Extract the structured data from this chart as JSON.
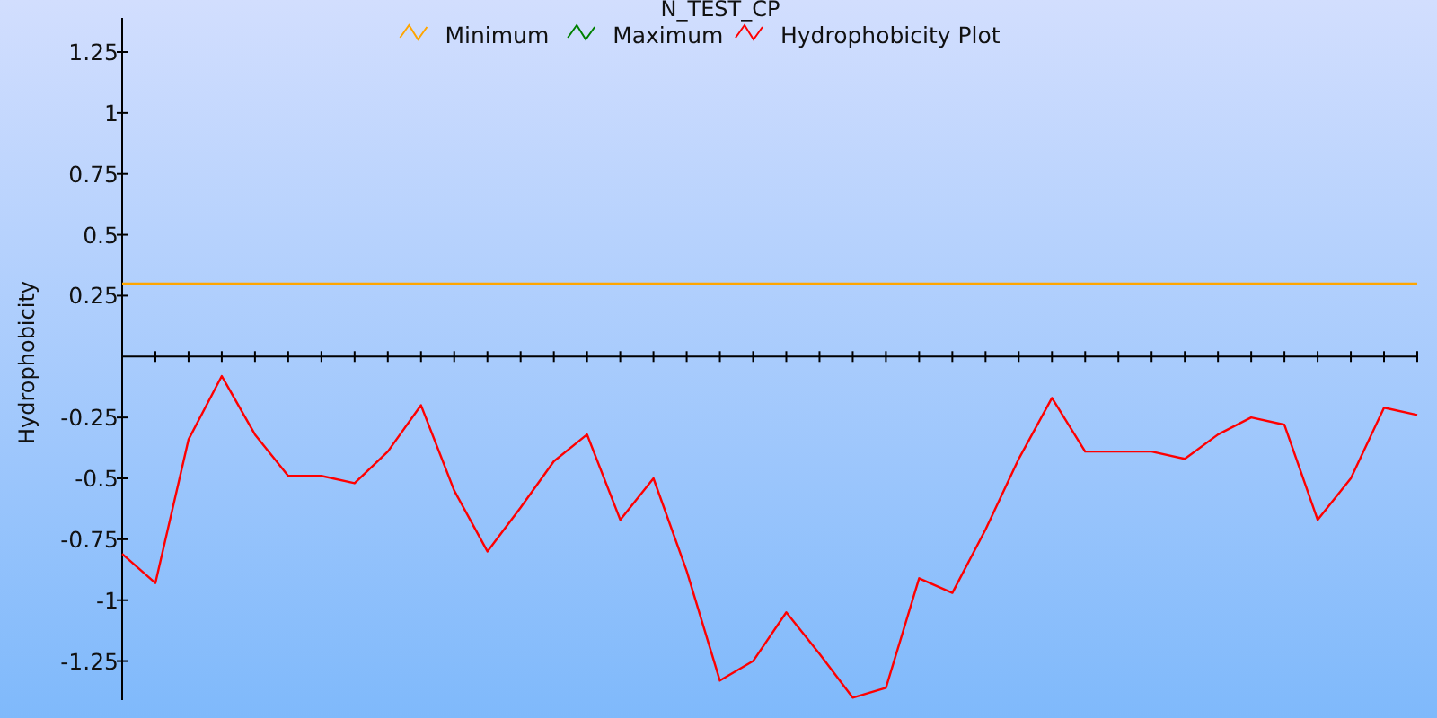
{
  "chart_data": {
    "type": "line",
    "title": "N_TEST_CP",
    "ylabel": "Hydrophobicity",
    "categories": [
      null,
      null,
      null,
      null,
      null,
      null,
      null,
      null,
      null,
      null,
      null,
      null,
      null,
      null,
      null,
      null,
      null,
      null,
      null,
      null,
      null,
      null,
      null,
      null,
      null,
      null,
      null,
      null,
      null,
      null,
      null,
      null,
      null,
      null,
      null,
      null,
      null,
      null,
      null,
      null
    ],
    "series": [
      {
        "name": "Minimum",
        "color": "#ffa500",
        "values": [
          0.3,
          0.3,
          0.3,
          0.3,
          0.3,
          0.3,
          0.3,
          0.3,
          0.3,
          0.3,
          0.3,
          0.3,
          0.3,
          0.3,
          0.3,
          0.3,
          0.3,
          0.3,
          0.3,
          0.3,
          0.3,
          0.3,
          0.3,
          0.3,
          0.3,
          0.3,
          0.3,
          0.3,
          0.3,
          0.3,
          0.3,
          0.3,
          0.3,
          0.3,
          0.3,
          0.3,
          0.3,
          0.3,
          0.3,
          0.3
        ]
      },
      {
        "name": "Maximum",
        "color": "#008000",
        "values": [
          null,
          null,
          null,
          null,
          null,
          null,
          null,
          null,
          null,
          null,
          null,
          null,
          null,
          null,
          null,
          null,
          null,
          null,
          null,
          null,
          null,
          null,
          null,
          null,
          null,
          null,
          null,
          null,
          null,
          null,
          null,
          null,
          null,
          null,
          null,
          null,
          null,
          null,
          null,
          null
        ]
      },
      {
        "name": "Hydrophobicity Plot",
        "color": "#ff0000",
        "values": [
          -0.81,
          -0.93,
          -0.34,
          -0.08,
          -0.32,
          -0.49,
          -0.49,
          -0.52,
          -0.39,
          -0.2,
          -0.55,
          -0.8,
          -0.62,
          -0.43,
          -0.32,
          -0.67,
          -0.5,
          -0.88,
          -1.33,
          -1.25,
          -1.05,
          -1.22,
          -1.4,
          -1.36,
          -0.91,
          -0.97,
          -0.71,
          -0.42,
          -0.17,
          -0.39,
          -0.39,
          -0.39,
          -0.42,
          -0.32,
          -0.25,
          -0.28,
          -0.67,
          -0.5,
          -0.21,
          -0.24
        ]
      }
    ],
    "ylim": [
      -1.41,
      1.39
    ],
    "yticks": [
      -1.25,
      -1,
      -0.75,
      -0.5,
      -0.25,
      0.25,
      0.5,
      0.75,
      1,
      1.25
    ],
    "tick_labels": "y",
    "legend": "top",
    "marker": "none",
    "line_style": "solid"
  }
}
